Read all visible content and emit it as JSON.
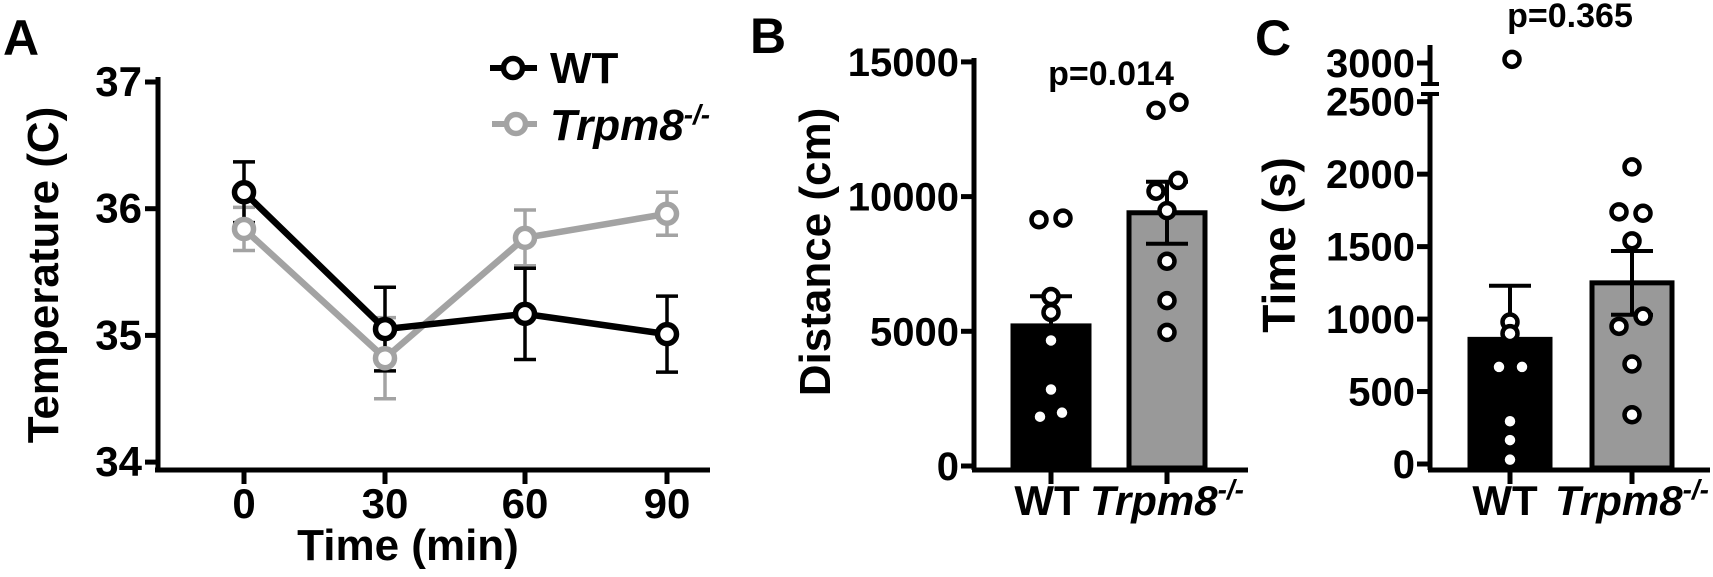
{
  "figure": {
    "panels": [
      {
        "label": "A"
      },
      {
        "label": "B"
      },
      {
        "label": "C"
      }
    ]
  },
  "colors": {
    "black": "#000000",
    "gray_line": "#a3a3a3",
    "gray_bar": "#999999",
    "marker_fill": "#ffffff"
  },
  "chart_data": [
    {
      "panel": "A",
      "type": "line",
      "xlabel": "Time (min)",
      "ylabel": "Temperature (C)",
      "x": [
        0,
        30,
        60,
        90
      ],
      "xtick_labels": [
        "0",
        "30",
        "60",
        "90"
      ],
      "yticks": [
        37,
        36,
        35,
        34
      ],
      "ylim": [
        34,
        37
      ],
      "grid": false,
      "legend_position": "top-right",
      "series": [
        {
          "name": "WT",
          "label_text": "WT",
          "label_sup": "",
          "color": "#000000",
          "values": [
            36.13,
            35.05,
            35.17,
            35.01
          ],
          "sem": [
            0.24,
            0.33,
            0.36,
            0.3
          ]
        },
        {
          "name": "Trpm8-/-",
          "label_text": "Trpm8",
          "label_sup": "-/-",
          "color": "#a3a3a3",
          "values": [
            35.84,
            34.82,
            35.77,
            35.96
          ],
          "sem": [
            0.17,
            0.32,
            0.22,
            0.17
          ]
        }
      ]
    },
    {
      "panel": "B",
      "type": "bar",
      "ylabel": "Distance (cm)",
      "p_value_label": "p=0.014",
      "yticks": [
        0,
        5000,
        10000,
        15000
      ],
      "ylim": [
        0,
        15000
      ],
      "grid": false,
      "categories": [
        {
          "text": "WT",
          "sup": "",
          "italic": false
        },
        {
          "text": "Trpm8",
          "sup": "-/-",
          "italic": true
        }
      ],
      "bars": [
        {
          "category": "WT",
          "mean": 5200,
          "sem": 1100,
          "fill": "#000000",
          "points": [
            9140,
            9200,
            6290,
            5700,
            4660,
            2840,
            1980,
            1830
          ],
          "point_offsets": [
            -12,
            12,
            0,
            0,
            0,
            0,
            11,
            -11
          ]
        },
        {
          "category": "Trpm8-/-",
          "mean": 9400,
          "sem": 1150,
          "fill": "#999999",
          "points": [
            13200,
            13500,
            10200,
            10600,
            9480,
            7600,
            6140,
            4960
          ],
          "point_offsets": [
            -11,
            12,
            -11,
            11,
            0,
            0,
            0,
            0
          ]
        }
      ]
    },
    {
      "panel": "C",
      "type": "bar",
      "ylabel": "Time (s)",
      "p_value_label": "p=0.365",
      "yticks": [
        0,
        500,
        1000,
        1500,
        2000,
        2500,
        3000
      ],
      "ylim": [
        0,
        3100
      ],
      "axis_break": {
        "between": [
          2500,
          3000
        ]
      },
      "grid": false,
      "categories": [
        {
          "text": "WT",
          "sup": "",
          "italic": false
        },
        {
          "text": "Trpm8",
          "sup": "-/-",
          "italic": true
        }
      ],
      "bars": [
        {
          "category": "WT",
          "mean": 860,
          "sem": 370,
          "fill": "#000000",
          "points": [
            3050,
            980,
            900,
            670,
            670,
            295,
            165,
            30
          ],
          "point_offsets": [
            2,
            0,
            0,
            -11,
            12,
            0,
            0,
            0
          ]
        },
        {
          "category": "Trpm8-/-",
          "mean": 1250,
          "sem": 220,
          "fill": "#999999",
          "points": [
            2050,
            1740,
            1730,
            1540,
            1020,
            950,
            690,
            340
          ],
          "point_offsets": [
            0,
            -13,
            11,
            0,
            11,
            -13,
            0,
            0
          ]
        }
      ]
    }
  ]
}
